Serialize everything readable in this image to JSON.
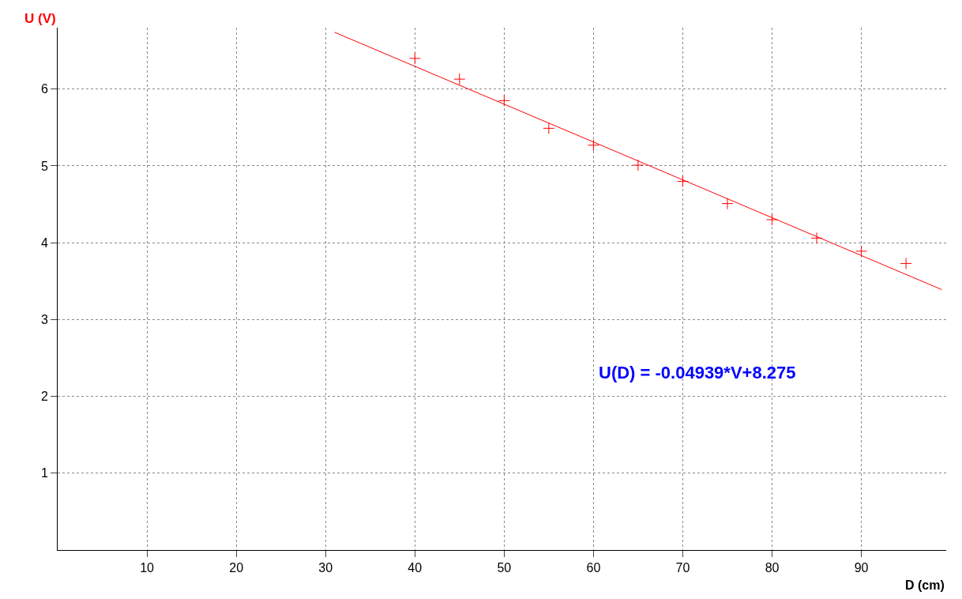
{
  "chart_data": {
    "type": "scatter",
    "xlabel": "D (cm)",
    "ylabel": "U (V)",
    "annotations": [
      "U(D) = -0.04939*V+8.275"
    ],
    "series": [
      {
        "marker": "cross",
        "color": "#ff0000",
        "x": [
          40,
          45,
          50,
          55,
          60,
          65,
          70,
          75,
          80,
          85,
          90,
          95
        ],
        "values": [
          6.4,
          6.13,
          5.85,
          5.49,
          5.27,
          5.01,
          4.8,
          4.51,
          4.3,
          4.06,
          3.89,
          3.73
        ]
      },
      {
        "type": "line",
        "marker": "none",
        "color": "#ff0000",
        "x": [
          31,
          99
        ],
        "values": [
          6.74,
          3.39
        ]
      }
    ],
    "xlim": [
      0,
      99.5
    ],
    "ylim": [
      0,
      6.8
    ],
    "xticks": [
      10,
      20,
      30,
      40,
      50,
      60,
      70,
      80,
      90
    ],
    "yticks": [
      1,
      2,
      3,
      4,
      5,
      6
    ],
    "grid": true
  }
}
